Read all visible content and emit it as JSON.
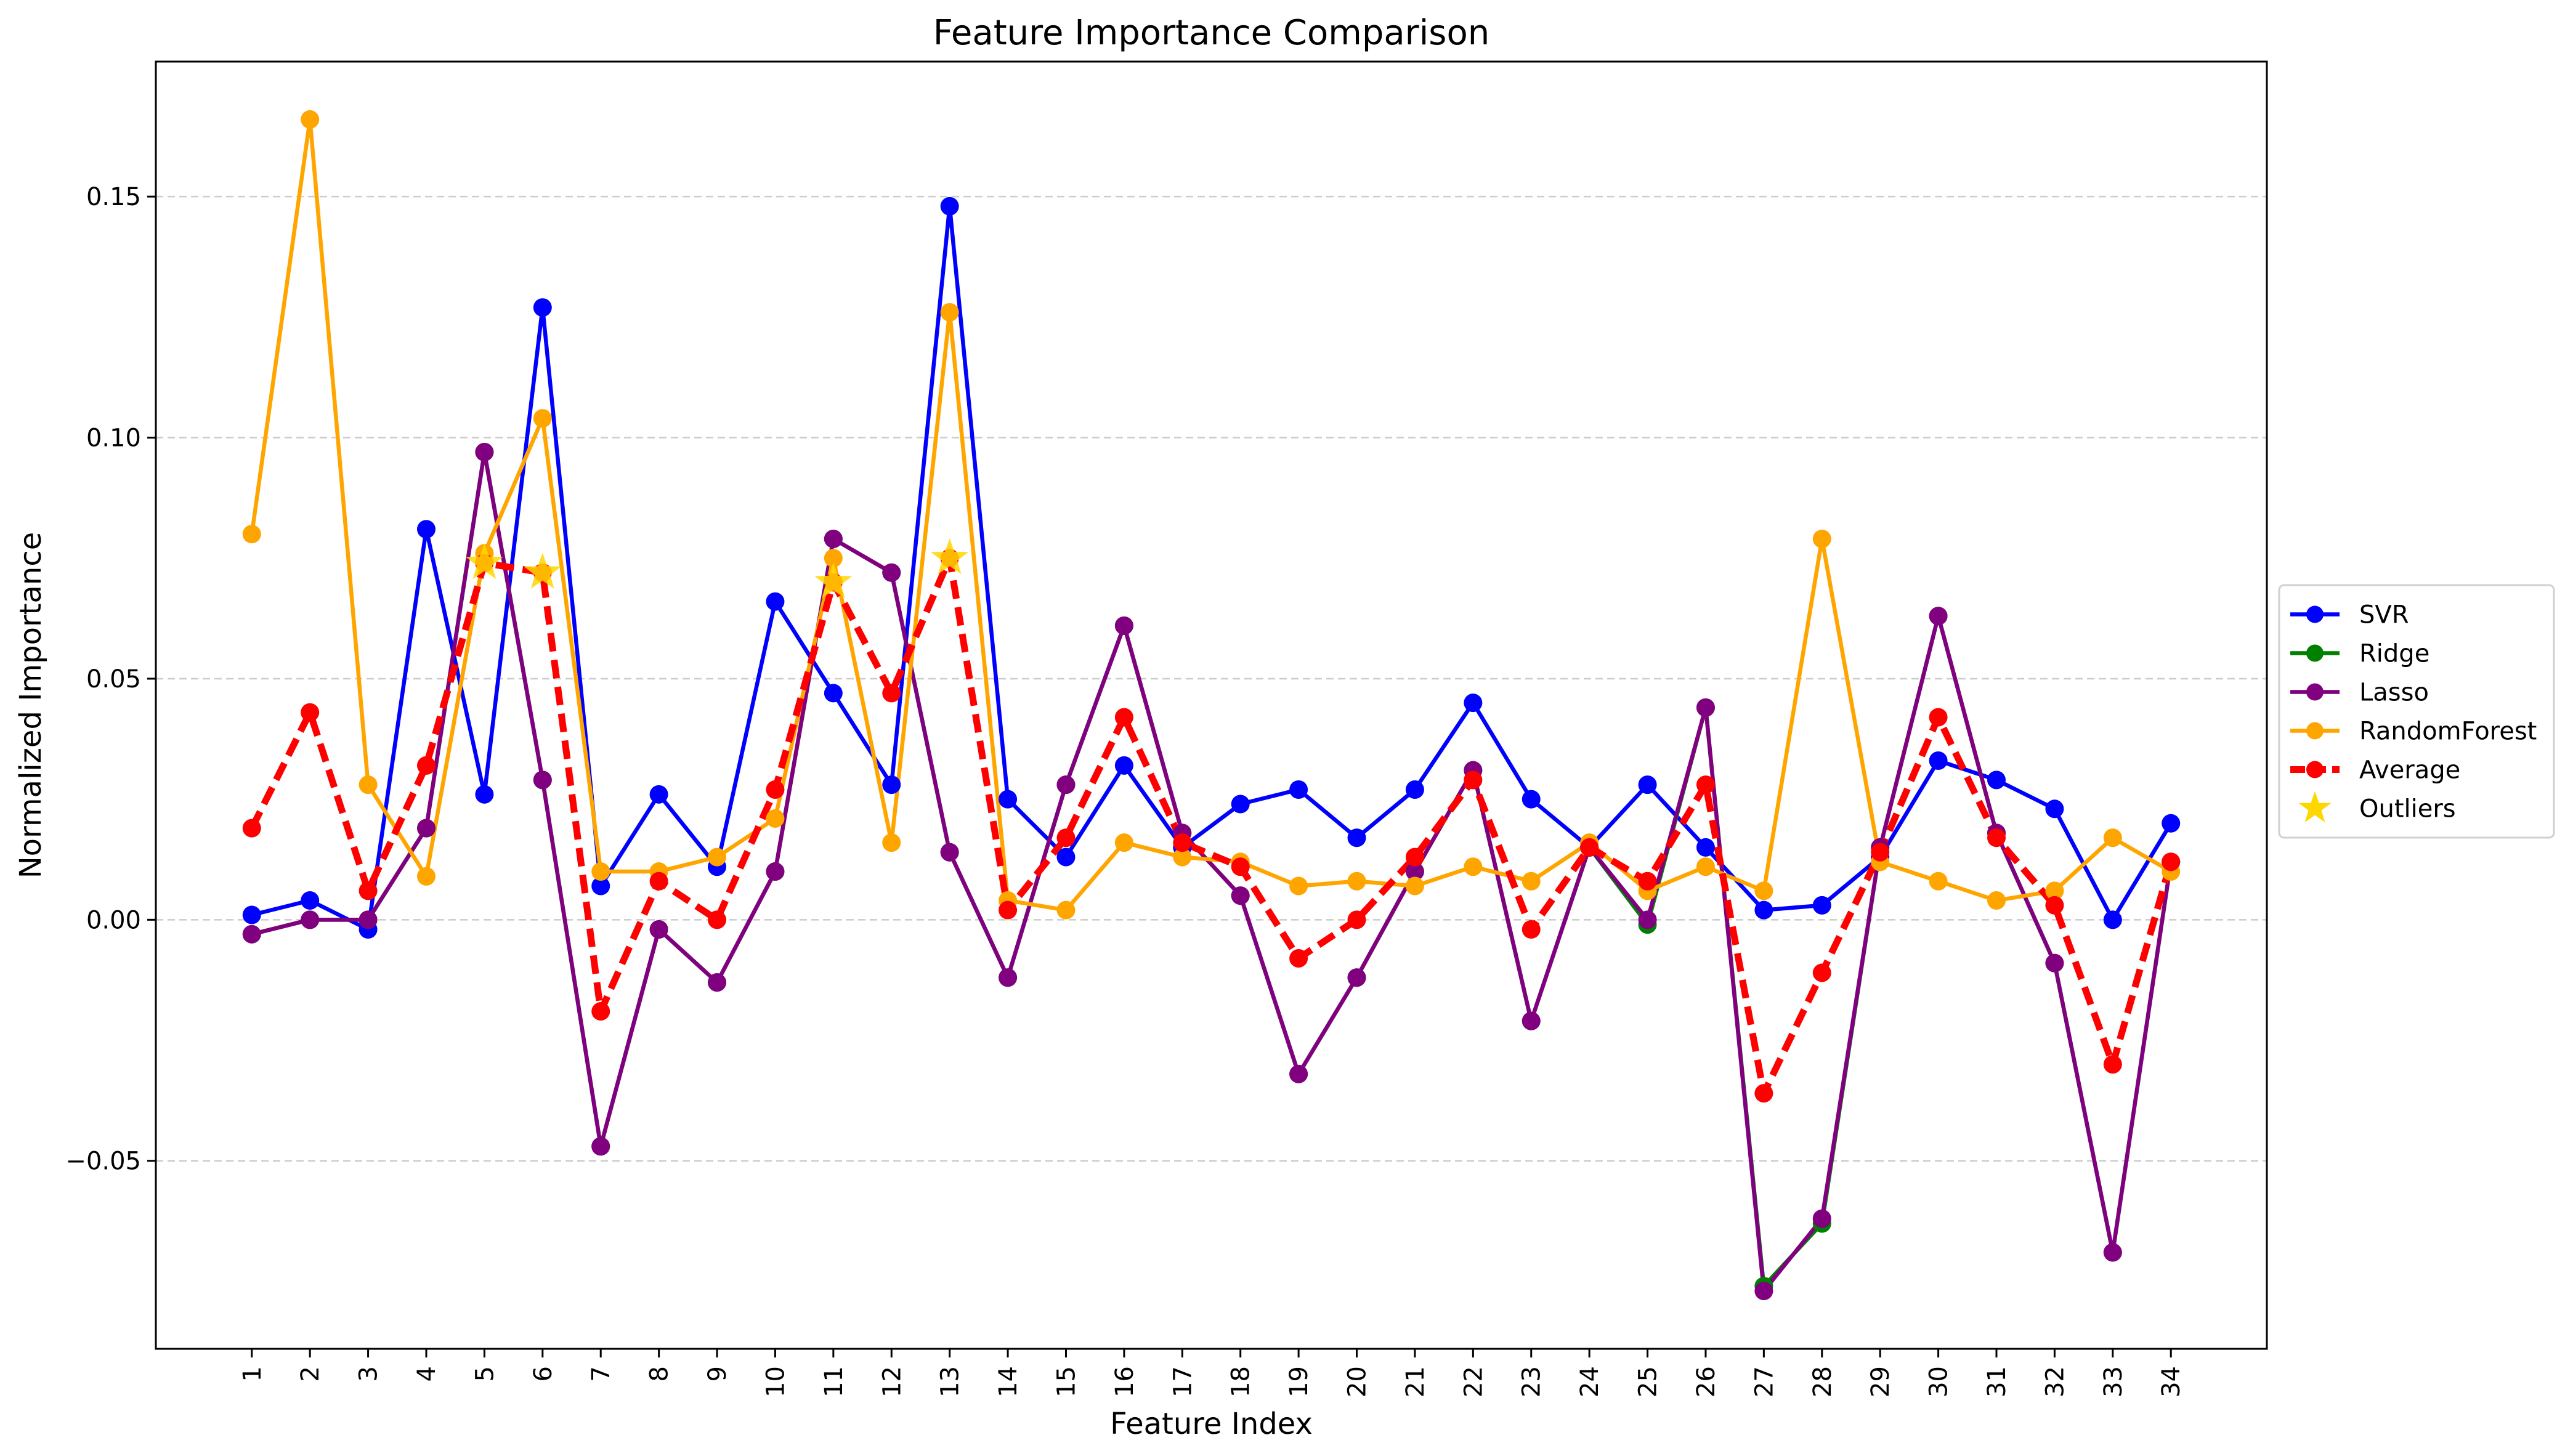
{
  "chart_data": {
    "type": "line",
    "title": "Feature Importance Comparison",
    "xlabel": "Feature Index",
    "ylabel": "Normalized Importance",
    "x": [
      1,
      2,
      3,
      4,
      5,
      6,
      7,
      8,
      9,
      10,
      11,
      12,
      13,
      14,
      15,
      16,
      17,
      18,
      19,
      20,
      21,
      22,
      23,
      24,
      25,
      26,
      27,
      28,
      29,
      30,
      31,
      32,
      33,
      34
    ],
    "xlim": [
      -0.65,
      35.65
    ],
    "ylim": [
      -0.089,
      0.178
    ],
    "yticks": [
      -0.05,
      0.0,
      0.05,
      0.1,
      0.15
    ],
    "ytick_labels": [
      "−0.05",
      "0.00",
      "0.05",
      "0.10",
      "0.15"
    ],
    "grid": "y-axis, dashed",
    "legend_position": "outside right, center",
    "series": [
      {
        "name": "SVR",
        "color": "#0000ff",
        "style": "solid",
        "values": [
          0.001,
          0.004,
          -0.002,
          0.081,
          0.026,
          0.127,
          0.007,
          0.026,
          0.011,
          0.066,
          0.047,
          0.028,
          0.148,
          0.025,
          0.013,
          0.032,
          0.015,
          0.024,
          0.027,
          0.017,
          0.027,
          0.045,
          0.025,
          0.015,
          0.028,
          0.015,
          0.002,
          0.003,
          0.013,
          0.033,
          0.029,
          0.023,
          0.0,
          0.02
        ]
      },
      {
        "name": "Ridge",
        "color": "#008000",
        "style": "solid",
        "values": [
          -0.003,
          0.0,
          0.0,
          0.019,
          0.097,
          0.029,
          -0.047,
          -0.002,
          -0.013,
          0.01,
          0.079,
          0.072,
          0.014,
          -0.012,
          0.028,
          0.061,
          0.018,
          0.005,
          -0.032,
          -0.012,
          0.01,
          0.031,
          -0.021,
          0.015,
          -0.001,
          0.044,
          -0.076,
          -0.063,
          0.015,
          0.063,
          0.018,
          -0.009,
          -0.069,
          0.012
        ]
      },
      {
        "name": "Lasso",
        "color": "#800080",
        "style": "solid",
        "values": [
          -0.003,
          0.0,
          0.0,
          0.019,
          0.097,
          0.029,
          -0.047,
          -0.002,
          -0.013,
          0.01,
          0.079,
          0.072,
          0.014,
          -0.012,
          0.028,
          0.061,
          0.018,
          0.005,
          -0.032,
          -0.012,
          0.01,
          0.031,
          -0.021,
          0.015,
          0.0,
          0.044,
          -0.077,
          -0.062,
          0.015,
          0.063,
          0.018,
          -0.009,
          -0.069,
          0.012
        ]
      },
      {
        "name": "RandomForest",
        "color": "#ffa500",
        "style": "solid",
        "values": [
          0.08,
          0.166,
          0.028,
          0.009,
          0.076,
          0.104,
          0.01,
          0.01,
          0.013,
          0.021,
          0.075,
          0.016,
          0.126,
          0.004,
          0.002,
          0.016,
          0.013,
          0.012,
          0.007,
          0.008,
          0.007,
          0.011,
          0.008,
          0.016,
          0.006,
          0.011,
          0.006,
          0.079,
          0.012,
          0.008,
          0.004,
          0.006,
          0.017,
          0.01
        ]
      },
      {
        "name": "Average",
        "color": "#ff0000",
        "style": "dashed",
        "values": [
          0.019,
          0.043,
          0.006,
          0.032,
          0.074,
          0.072,
          -0.019,
          0.008,
          0.0,
          0.027,
          0.07,
          0.047,
          0.075,
          0.002,
          0.017,
          0.042,
          0.016,
          0.011,
          -0.008,
          0.0,
          0.013,
          0.029,
          -0.002,
          0.015,
          0.008,
          0.028,
          -0.036,
          -0.011,
          0.014,
          0.042,
          0.017,
          0.003,
          -0.03,
          0.012
        ]
      }
    ],
    "outliers": {
      "name": "Outliers",
      "color": "#ffd700",
      "marker": "star",
      "x": [
        5,
        6,
        11,
        13
      ],
      "y": [
        0.074,
        0.072,
        0.07,
        0.075
      ]
    }
  }
}
